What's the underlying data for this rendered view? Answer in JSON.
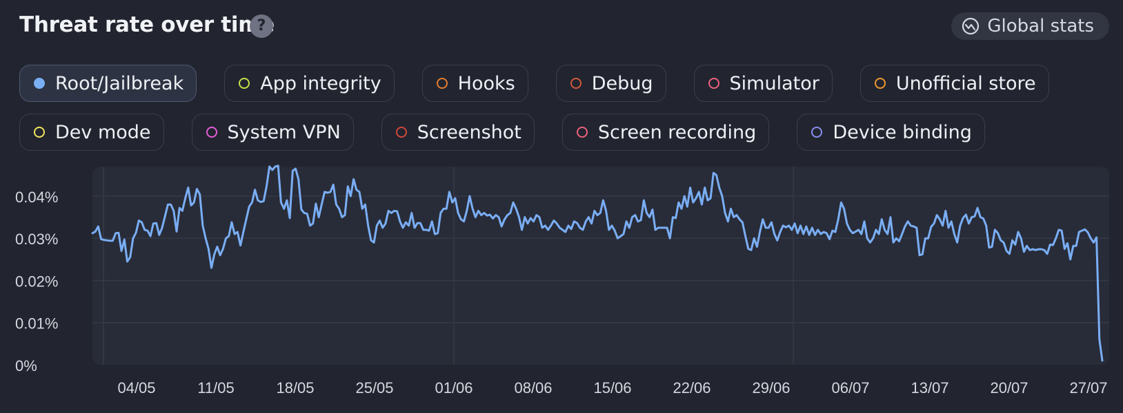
{
  "header": {
    "title": "Threat rate over time",
    "help_icon": "question-mark-icon",
    "global_stats_label": "Global stats",
    "global_stats_icon": "globe-chart-icon"
  },
  "filters": {
    "row1": [
      {
        "label": "Root/Jailbreak",
        "color": "#7aaef5",
        "active": true
      },
      {
        "label": "App integrity",
        "color": "#c8e04a",
        "active": false
      },
      {
        "label": "Hooks",
        "color": "#e47c2e",
        "active": false
      },
      {
        "label": "Debug",
        "color": "#d25a3c",
        "active": false
      },
      {
        "label": "Simulator",
        "color": "#f0607e",
        "active": false
      },
      {
        "label": "Unofficial store",
        "color": "#f0972e",
        "active": false
      }
    ],
    "row2": [
      {
        "label": "Dev mode",
        "color": "#f2e45a",
        "active": false
      },
      {
        "label": "System VPN",
        "color": "#e45ed8",
        "active": false
      },
      {
        "label": "Screenshot",
        "color": "#d2483c",
        "active": false
      },
      {
        "label": "Screen recording",
        "color": "#f0607e",
        "active": false
      },
      {
        "label": "Device binding",
        "color": "#8a8ef0",
        "active": false
      }
    ]
  },
  "chart_data": {
    "type": "line",
    "title": "Threat rate over time",
    "yticks": [
      "0.04%",
      "0.03%",
      "0.02%",
      "0.01%",
      "0%"
    ],
    "ylim": [
      0,
      0.047
    ],
    "xticks": [
      "04/05",
      "11/05",
      "18/05",
      "25/05",
      "01/06",
      "08/06",
      "15/06",
      "22/06",
      "29/06",
      "06/07",
      "13/07",
      "20/07",
      "27/07"
    ],
    "grid": true,
    "series": [
      {
        "color": "#7aaef5",
        "values": [
          0.0312,
          0.0316,
          0.0328,
          0.0298,
          0.0296,
          0.0295,
          0.0294,
          0.0294,
          0.0312,
          0.0313,
          0.027,
          0.0297,
          0.0245,
          0.0255,
          0.03,
          0.0313,
          0.0342,
          0.0338,
          0.032,
          0.0318,
          0.0305,
          0.0335,
          0.0336,
          0.0308,
          0.0325,
          0.0352,
          0.038,
          0.038,
          0.0365,
          0.0316,
          0.0372,
          0.0365,
          0.0395,
          0.042,
          0.0378,
          0.0385,
          0.0417,
          0.0404,
          0.033,
          0.03,
          0.0275,
          0.023,
          0.0262,
          0.028,
          0.026,
          0.0275,
          0.03,
          0.0305,
          0.0338,
          0.031,
          0.0315,
          0.0283,
          0.0315,
          0.0345,
          0.0375,
          0.0385,
          0.0415,
          0.039,
          0.0386,
          0.0388,
          0.0423,
          0.047,
          0.0462,
          0.047,
          0.0472,
          0.0385,
          0.037,
          0.039,
          0.0348,
          0.046,
          0.0465,
          0.044,
          0.0368,
          0.036,
          0.0358,
          0.033,
          0.0335,
          0.0382,
          0.035,
          0.038,
          0.041,
          0.0408,
          0.041,
          0.0427,
          0.038,
          0.037,
          0.035,
          0.0355,
          0.0423,
          0.04,
          0.044,
          0.0415,
          0.041,
          0.037,
          0.038,
          0.033,
          0.0295,
          0.029,
          0.033,
          0.0342,
          0.0325,
          0.0335,
          0.0365,
          0.036,
          0.0365,
          0.0364,
          0.034,
          0.0325,
          0.0338,
          0.033,
          0.036,
          0.0325,
          0.0336,
          0.0336,
          0.032,
          0.032,
          0.0318,
          0.034,
          0.031,
          0.0312,
          0.036,
          0.037,
          0.037,
          0.041,
          0.0385,
          0.0395,
          0.036,
          0.0345,
          0.034,
          0.0365,
          0.04,
          0.037,
          0.035,
          0.0365,
          0.0355,
          0.036,
          0.0354,
          0.0356,
          0.0347,
          0.0355,
          0.035,
          0.0328,
          0.0345,
          0.0355,
          0.036,
          0.0385,
          0.037,
          0.035,
          0.032,
          0.035,
          0.0335,
          0.0348,
          0.034,
          0.0355,
          0.035,
          0.0325,
          0.033,
          0.032,
          0.033,
          0.0342,
          0.0335,
          0.0325,
          0.032,
          0.0315,
          0.033,
          0.0322,
          0.034,
          0.0336,
          0.0325,
          0.032,
          0.034,
          0.035,
          0.0335,
          0.0365,
          0.0355,
          0.036,
          0.039,
          0.0365,
          0.032,
          0.033,
          0.0318,
          0.03,
          0.0305,
          0.031,
          0.034,
          0.0325,
          0.035,
          0.0355,
          0.034,
          0.0343,
          0.039,
          0.036,
          0.035,
          0.0368,
          0.032,
          0.0325,
          0.0325,
          0.0325,
          0.0325,
          0.03,
          0.035,
          0.0348,
          0.0385,
          0.037,
          0.04,
          0.0375,
          0.042,
          0.0385,
          0.0395,
          0.041,
          0.038,
          0.042,
          0.039,
          0.0395,
          0.0455,
          0.045,
          0.042,
          0.04,
          0.036,
          0.034,
          0.037,
          0.035,
          0.0355,
          0.0345,
          0.0338,
          0.0305,
          0.0275,
          0.0272,
          0.03,
          0.028,
          0.0315,
          0.0345,
          0.0325,
          0.0325,
          0.0338,
          0.031,
          0.0295,
          0.0315,
          0.033,
          0.0326,
          0.033,
          0.032,
          0.0335,
          0.0312,
          0.033,
          0.031,
          0.0328,
          0.0308,
          0.0325,
          0.0308,
          0.032,
          0.031,
          0.0315,
          0.0312,
          0.0298,
          0.0318,
          0.0315,
          0.0345,
          0.0385,
          0.037,
          0.0335,
          0.032,
          0.0312,
          0.0316,
          0.032,
          0.031,
          0.034,
          0.03,
          0.029,
          0.03,
          0.032,
          0.031,
          0.0345,
          0.032,
          0.031,
          0.035,
          0.029,
          0.03,
          0.0293,
          0.031,
          0.0328,
          0.034,
          0.033,
          0.0328,
          0.0325,
          0.026,
          0.0262,
          0.03,
          0.03,
          0.0327,
          0.0335,
          0.0355,
          0.0345,
          0.033,
          0.0365,
          0.0325,
          0.034,
          0.031,
          0.029,
          0.033,
          0.0348,
          0.0356,
          0.0335,
          0.035,
          0.0352,
          0.0372,
          0.035,
          0.0347,
          0.033,
          0.0278,
          0.028,
          0.032,
          0.0312,
          0.0295,
          0.029,
          0.027,
          0.0263,
          0.0295,
          0.0285,
          0.0315,
          0.03,
          0.0268,
          0.0282,
          0.0272,
          0.0274,
          0.0272,
          0.0274,
          0.0274,
          0.0272,
          0.0263,
          0.0285,
          0.0284,
          0.03,
          0.032,
          0.0318,
          0.0275,
          0.0288,
          0.025,
          0.0282,
          0.0282,
          0.0315,
          0.0318,
          0.0321,
          0.0314,
          0.03,
          0.029,
          0.0302,
          0.006,
          0.001
        ]
      }
    ]
  }
}
